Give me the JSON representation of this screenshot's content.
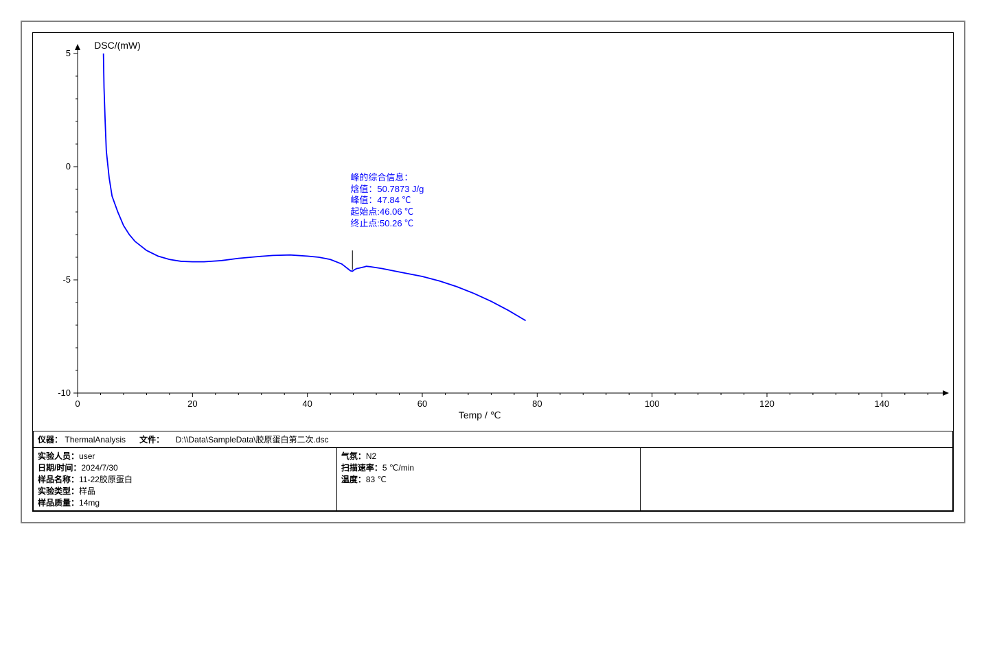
{
  "chart": {
    "type": "line",
    "y_axis_label": "DSC/(mW)",
    "x_axis_label": "Temp / ℃",
    "x_ticks": [
      0,
      20,
      40,
      60,
      80,
      100,
      120,
      140
    ],
    "y_ticks": [
      -10,
      -5,
      0,
      5
    ],
    "xlim": [
      0,
      150
    ],
    "ylim": [
      -10,
      5
    ],
    "line_color": "#0000ff",
    "axis_color": "#000000",
    "background_color": "#ffffff",
    "line_width": 1.8,
    "data": [
      [
        4.5,
        5.0
      ],
      [
        4.6,
        3.5
      ],
      [
        4.8,
        2.0
      ],
      [
        5.0,
        0.7
      ],
      [
        5.5,
        -0.5
      ],
      [
        6.0,
        -1.3
      ],
      [
        7.0,
        -2.0
      ],
      [
        8.0,
        -2.6
      ],
      [
        9.0,
        -3.0
      ],
      [
        10.0,
        -3.3
      ],
      [
        12.0,
        -3.7
      ],
      [
        14.0,
        -3.95
      ],
      [
        16.0,
        -4.1
      ],
      [
        18.0,
        -4.18
      ],
      [
        20.0,
        -4.2
      ],
      [
        22.0,
        -4.2
      ],
      [
        25.0,
        -4.15
      ],
      [
        28.0,
        -4.05
      ],
      [
        31.0,
        -3.98
      ],
      [
        34.0,
        -3.92
      ],
      [
        37.0,
        -3.9
      ],
      [
        40.0,
        -3.95
      ],
      [
        42.0,
        -4.0
      ],
      [
        44.0,
        -4.1
      ],
      [
        45.0,
        -4.2
      ],
      [
        46.0,
        -4.3
      ],
      [
        46.5,
        -4.4
      ],
      [
        47.0,
        -4.5
      ],
      [
        47.5,
        -4.6
      ],
      [
        47.84,
        -4.62
      ],
      [
        48.2,
        -4.55
      ],
      [
        48.6,
        -4.5
      ],
      [
        49.0,
        -4.48
      ],
      [
        49.5,
        -4.45
      ],
      [
        50.0,
        -4.42
      ],
      [
        50.26,
        -4.4
      ],
      [
        51.0,
        -4.42
      ],
      [
        53.0,
        -4.5
      ],
      [
        56.0,
        -4.65
      ],
      [
        60.0,
        -4.85
      ],
      [
        63.0,
        -5.05
      ],
      [
        66.0,
        -5.3
      ],
      [
        69.0,
        -5.6
      ],
      [
        72.0,
        -5.95
      ],
      [
        75.0,
        -6.35
      ],
      [
        78.0,
        -6.8
      ]
    ],
    "annotation": {
      "title": "峰的综合信息：",
      "lines": [
        {
          "label": "焓值：",
          "value": "50.7873 J/g"
        },
        {
          "label": "峰值：",
          "value": "47.84 ℃"
        },
        {
          "label": "起始点:",
          "value": "46.06 ℃"
        },
        {
          "label": "终止点:",
          "value": "50.26 ℃"
        }
      ],
      "pointer_from": [
        47.84,
        -3.7
      ],
      "pointer_to": [
        47.84,
        -4.55
      ],
      "text_pos_temp": 47.5,
      "text_pos_dsc": -1.9
    }
  },
  "info": {
    "header": {
      "instrument_label": "仪器：",
      "instrument_value": "ThermalAnalysis",
      "file_label": "文件：",
      "file_value": "D:\\\\Data\\SampleData\\胶原蛋白第二次.dsc"
    },
    "col1": [
      {
        "label": "实验人员：",
        "value": "user"
      },
      {
        "label": "日期/时间：",
        "value": "2024/7/30"
      },
      {
        "label": "样品名称：",
        "value": "11-22胶原蛋白"
      },
      {
        "label": "实验类型：",
        "value": "样品"
      },
      {
        "label": "样品质量：",
        "value": "14mg"
      }
    ],
    "col2": [
      {
        "label": "气氛：",
        "value": "N2"
      },
      {
        "label": "扫描速率：",
        "value": "5 ℃/min"
      },
      {
        "label": "温度：",
        "value": "83 ℃"
      }
    ]
  }
}
